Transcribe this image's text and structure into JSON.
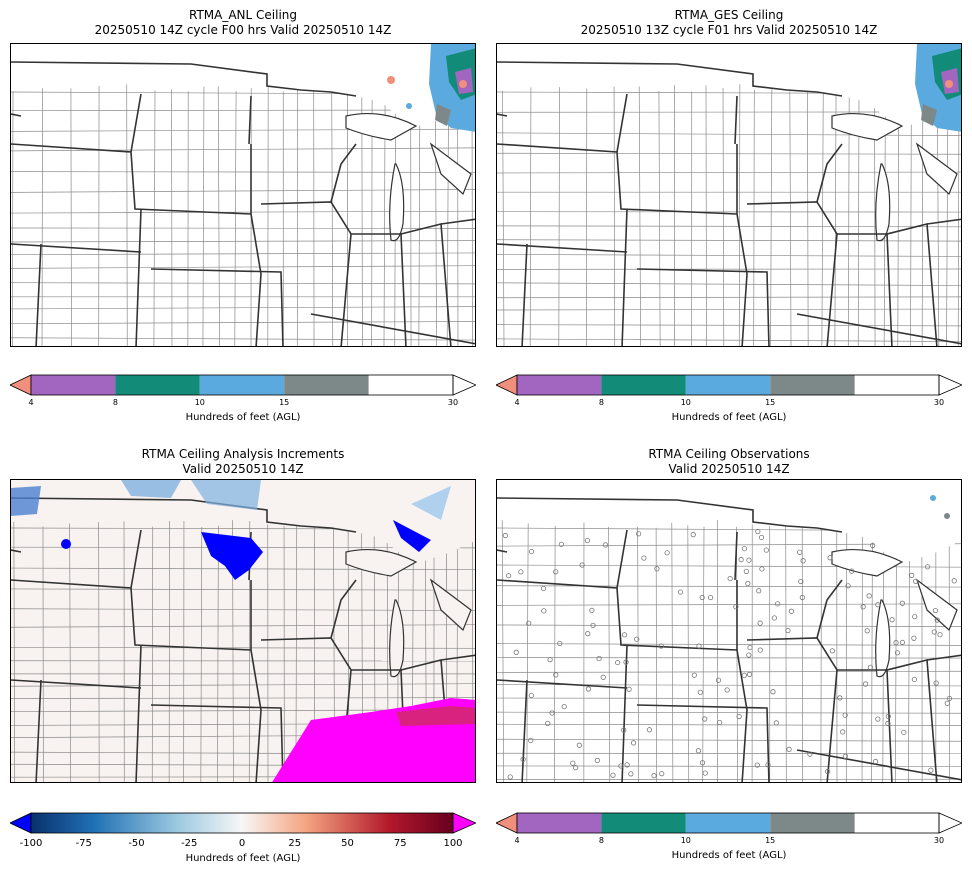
{
  "panels": [
    {
      "title_line1": "RTMA_ANL Ceiling",
      "title_line2": "20250510 14Z cycle F00 hrs Valid 20250510 14Z"
    },
    {
      "title_line1": "RTMA_GES Ceiling",
      "title_line2": "20250510 13Z cycle F01 hrs Valid 20250510 14Z"
    },
    {
      "title_line1": "RTMA Ceiling Analysis Increments",
      "title_line2": "Valid 20250510 14Z"
    },
    {
      "title_line1": "RTMA Ceiling Observations",
      "title_line2": "Valid 20250510 14Z"
    }
  ],
  "colorbar_ceiling": {
    "label": "Hundreds of feet (AGL)",
    "ticks": [
      "4",
      "8",
      "10",
      "15",
      "30"
    ],
    "colors": [
      "#f0907c",
      "#a366c0",
      "#128c78",
      "#5aaae0",
      "#7d8989",
      "#ffffff"
    ]
  },
  "colorbar_increments": {
    "label": "Hundreds of feet (AGL)",
    "ticks": [
      "-100",
      "-75",
      "-50",
      "-25",
      "0",
      "25",
      "50",
      "75",
      "100"
    ],
    "under_color": "#0000ff",
    "over_color": "#ff00ff"
  },
  "colors": {
    "state_border": "#333333",
    "county_border": "#8a8a8a"
  }
}
